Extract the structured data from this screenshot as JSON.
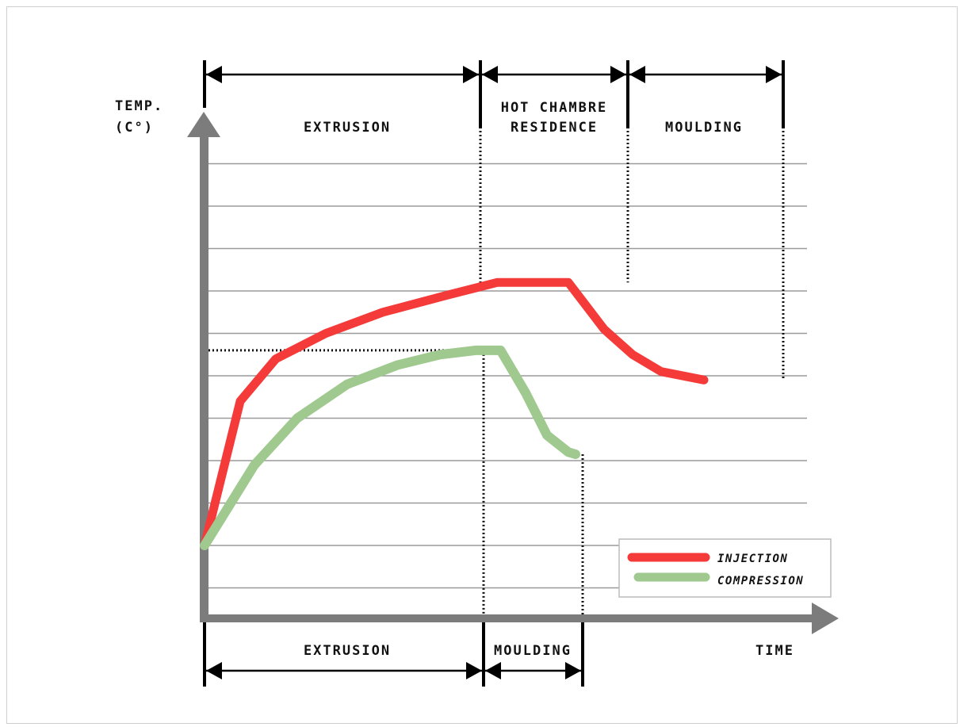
{
  "chart_data": {
    "type": "line",
    "ylabel_lines": [
      "TEMP.",
      "(C°)"
    ],
    "xlabel": "TIME",
    "grid": true,
    "legend_position": "bottom-right",
    "top_phases": [
      "EXTRUSION",
      "HOT CHAMBRE|RESIDENCE",
      "MOULDING"
    ],
    "bottom_phases": [
      "EXTRUSION",
      "MOULDING"
    ],
    "series": [
      {
        "name": "INJECTION",
        "color": "#f53a3a",
        "points": [
          [
            0,
            2
          ],
          [
            0.5,
            5.4
          ],
          [
            1,
            6.4
          ],
          [
            1.7,
            7
          ],
          [
            2.5,
            7.5
          ],
          [
            3.4,
            7.9
          ],
          [
            4.1,
            8.2
          ],
          [
            5.1,
            8.2
          ],
          [
            5.6,
            7.1
          ],
          [
            6,
            6.5
          ],
          [
            6.4,
            6.1
          ],
          [
            7,
            5.9
          ]
        ]
      },
      {
        "name": "COMPRESSION",
        "color": "#9fc98f",
        "points": [
          [
            0,
            2
          ],
          [
            0.7,
            3.9
          ],
          [
            1.3,
            5
          ],
          [
            2,
            5.8
          ],
          [
            2.7,
            6.25
          ],
          [
            3.3,
            6.5
          ],
          [
            3.8,
            6.6
          ],
          [
            4.15,
            6.6
          ],
          [
            4.5,
            5.6
          ],
          [
            4.8,
            4.6
          ],
          [
            5.1,
            4.2
          ],
          [
            5.2,
            4.15
          ]
        ]
      }
    ],
    "guides": {
      "compression_peak_y": 6.6,
      "compression_peak_x": 4.15
    }
  }
}
